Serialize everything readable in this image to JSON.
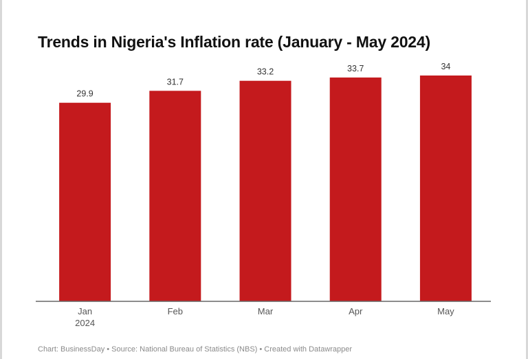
{
  "chart_data": {
    "type": "bar",
    "title": "Trends in Nigeria's Inflation rate (January - May 2024)",
    "categories": [
      "Jan",
      "Feb",
      "Mar",
      "Apr",
      "May"
    ],
    "category_sublabels": [
      "2024",
      "",
      "",
      "",
      ""
    ],
    "values": [
      29.9,
      31.7,
      33.2,
      33.7,
      34
    ],
    "value_labels": [
      "29.9",
      "31.7",
      "33.2",
      "33.7",
      "34"
    ],
    "xlabel": "",
    "ylabel": "",
    "ylim": [
      0,
      34
    ],
    "grid": false,
    "bar_color": "#c41a1d",
    "axis_color": "#666666"
  },
  "footer": {
    "text": "Chart: BusinessDay • Source: National Bureau of Statistics (NBS) • Created with Datawrapper"
  }
}
